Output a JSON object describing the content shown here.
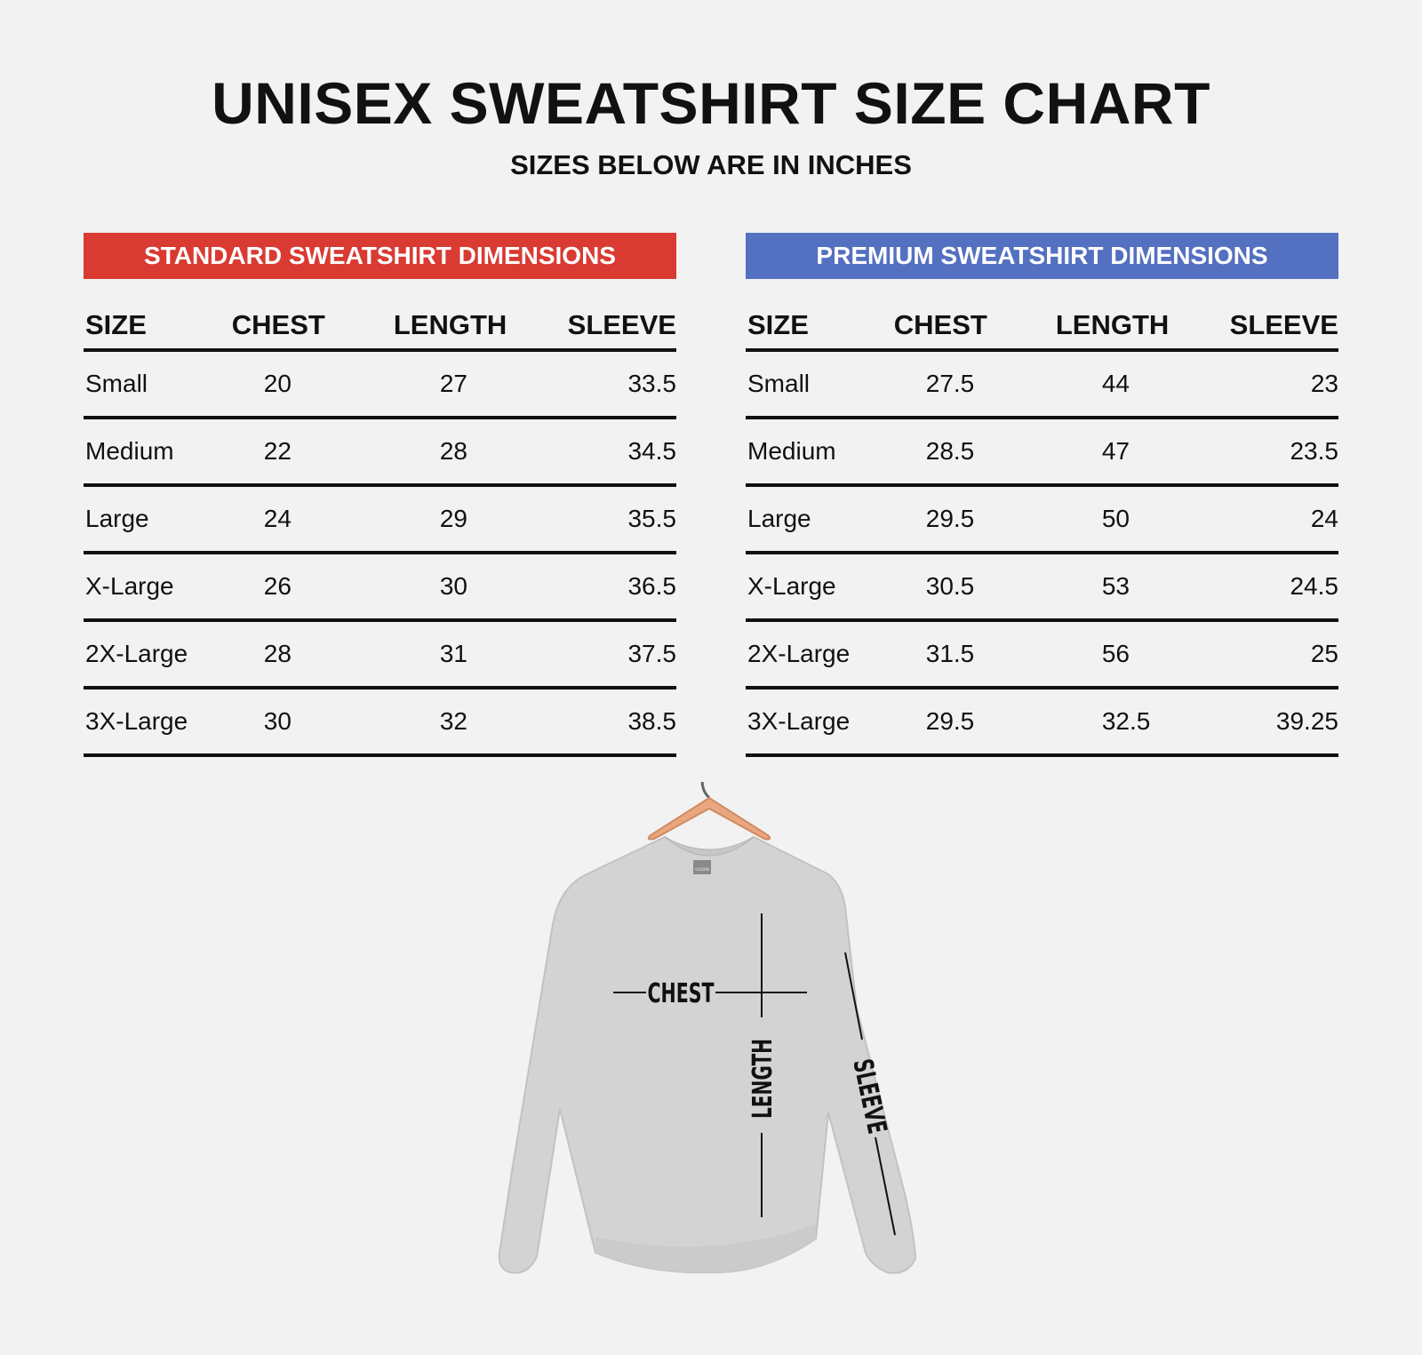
{
  "title": "UNISEX SWEATSHIRT SIZE CHART",
  "subtitle": "SIZES BELOW ARE IN INCHES",
  "standard": {
    "heading": "STANDARD SWEATSHIRT DIMENSIONS",
    "color": "#d93a32",
    "columns": [
      "SIZE",
      "CHEST",
      "LENGTH",
      "SLEEVE"
    ],
    "rows": [
      [
        "Small",
        "20",
        "27",
        "33.5"
      ],
      [
        "Medium",
        "22",
        "28",
        "34.5"
      ],
      [
        "Large",
        "24",
        "29",
        "35.5"
      ],
      [
        "X-Large",
        "26",
        "30",
        "36.5"
      ],
      [
        "2X-Large",
        "28",
        "31",
        "37.5"
      ],
      [
        "3X-Large",
        "30",
        "32",
        "38.5"
      ]
    ]
  },
  "premium": {
    "heading": "PREMIUM SWEATSHIRT DIMENSIONS",
    "color": "#5470c0",
    "columns": [
      "SIZE",
      "CHEST",
      "LENGTH",
      "SLEEVE"
    ],
    "rows": [
      [
        "Small",
        "27.5",
        "44",
        "23"
      ],
      [
        "Medium",
        "28.5",
        "47",
        "23.5"
      ],
      [
        "Large",
        "29.5",
        "50",
        "24"
      ],
      [
        "X-Large",
        "30.5",
        "53",
        "24.5"
      ],
      [
        "2X-Large",
        "31.5",
        "56",
        "25"
      ],
      [
        "3X-Large",
        "29.5",
        "32.5",
        "39.25"
      ]
    ]
  },
  "diagram": {
    "labels": {
      "chest": "CHEST",
      "length": "LENGTH",
      "sleeve": "SLEEVE"
    },
    "tag_text": "GILDAN",
    "icon": "sweatshirt-on-hanger-illustration",
    "colors": {
      "fabric": "#d3d3d3",
      "hanger": "#e9a77f"
    }
  }
}
